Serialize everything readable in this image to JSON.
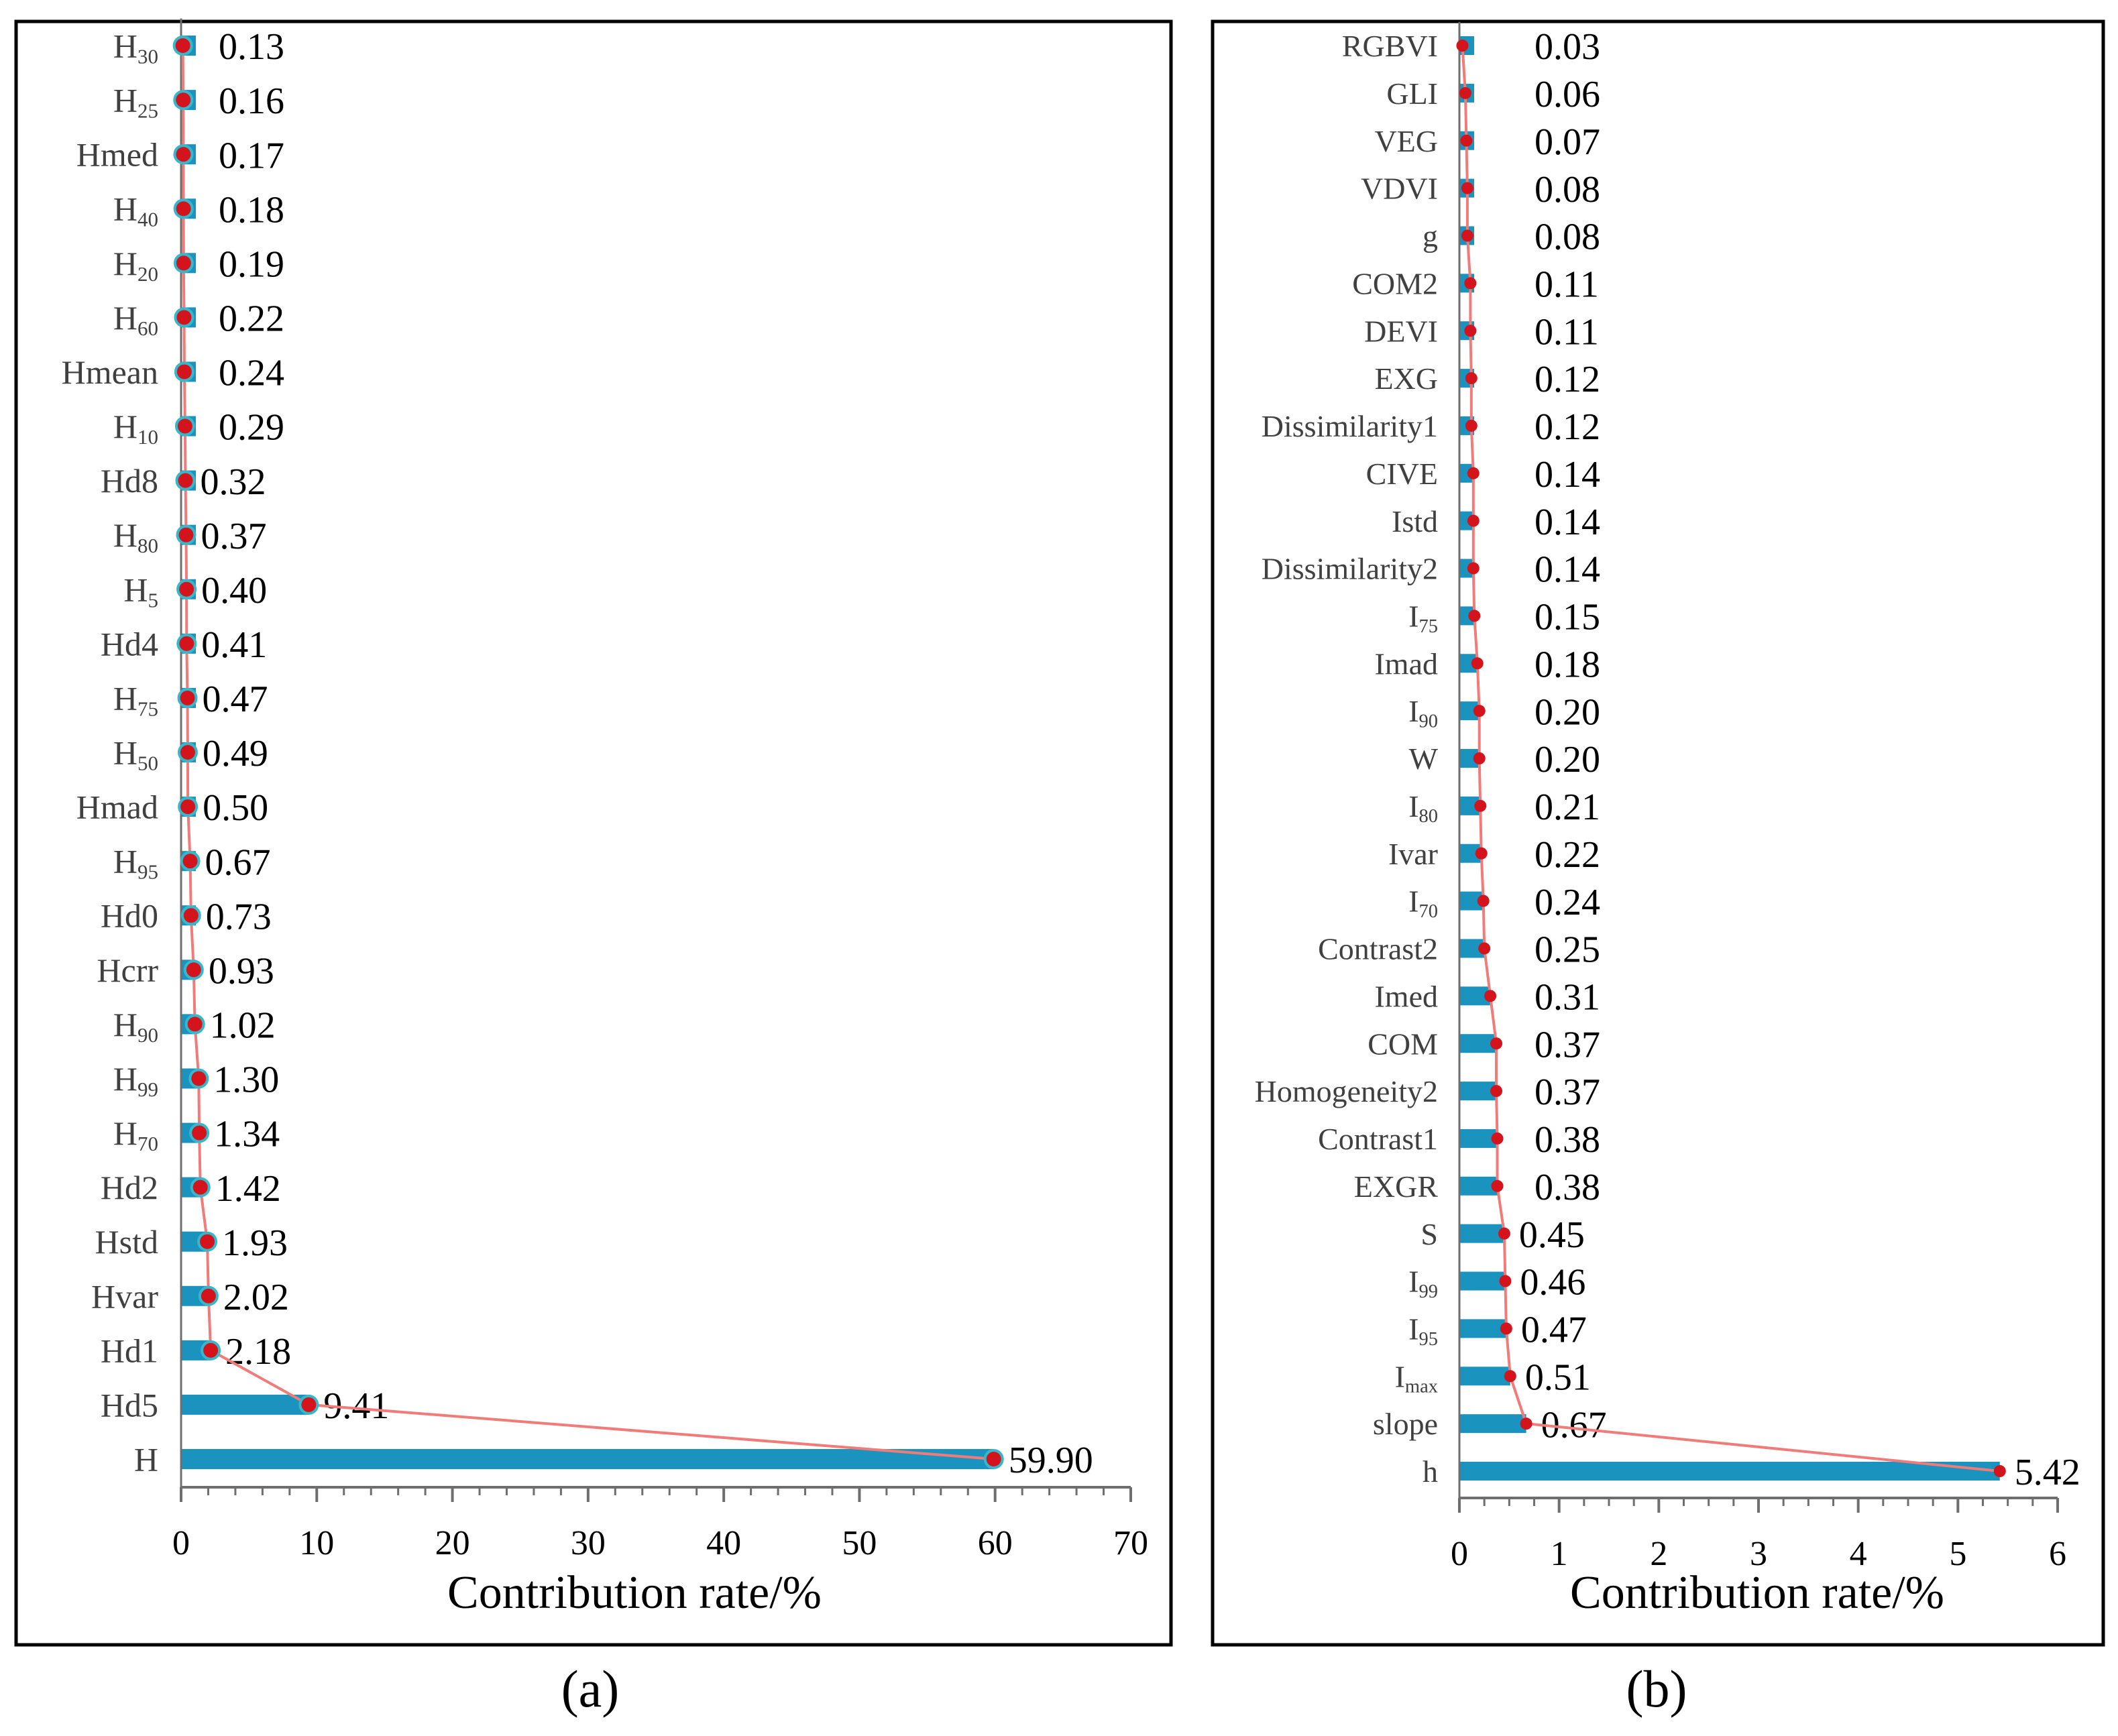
{
  "chart_data": [
    {
      "panel": "(a)",
      "type": "bar",
      "orientation": "horizontal",
      "xlabel": "Contribution rate/%",
      "xlim": [
        0,
        70
      ],
      "xticks": [
        0,
        10,
        20,
        30,
        40,
        50,
        60,
        70
      ],
      "categories": [
        {
          "name": "H",
          "sub": "30"
        },
        {
          "name": "H",
          "sub": "25"
        },
        {
          "name": "Hmed",
          "sub": ""
        },
        {
          "name": "H",
          "sub": "40"
        },
        {
          "name": "H",
          "sub": "20"
        },
        {
          "name": "H",
          "sub": "60"
        },
        {
          "name": "Hmean",
          "sub": ""
        },
        {
          "name": "H",
          "sub": "10"
        },
        {
          "name": "Hd8",
          "sub": ""
        },
        {
          "name": "H",
          "sub": "80"
        },
        {
          "name": "H",
          "sub": "5"
        },
        {
          "name": "Hd4",
          "sub": ""
        },
        {
          "name": "H",
          "sub": "75"
        },
        {
          "name": "H",
          "sub": "50"
        },
        {
          "name": "Hmad",
          "sub": ""
        },
        {
          "name": "H",
          "sub": "95"
        },
        {
          "name": "Hd0",
          "sub": ""
        },
        {
          "name": "Hcrr",
          "sub": ""
        },
        {
          "name": "H",
          "sub": "90"
        },
        {
          "name": "H",
          "sub": "99"
        },
        {
          "name": "H",
          "sub": "70"
        },
        {
          "name": "Hd2",
          "sub": ""
        },
        {
          "name": "Hstd",
          "sub": ""
        },
        {
          "name": "Hvar",
          "sub": ""
        },
        {
          "name": "Hd1",
          "sub": ""
        },
        {
          "name": "Hd5",
          "sub": ""
        },
        {
          "name": "H",
          "sub": ""
        }
      ],
      "values": [
        0.13,
        0.16,
        0.17,
        0.18,
        0.19,
        0.22,
        0.24,
        0.29,
        0.32,
        0.37,
        0.4,
        0.41,
        0.47,
        0.49,
        0.5,
        0.67,
        0.73,
        0.93,
        1.02,
        1.3,
        1.34,
        1.42,
        1.93,
        2.02,
        2.18,
        9.41,
        59.9
      ],
      "value_labels": [
        "0.13",
        "0.16",
        "0.17",
        "0.18",
        "0.19",
        "0.22",
        "0.24",
        "0.29",
        "0.32",
        "0.37",
        "0.40",
        "0.41",
        "0.47",
        "0.49",
        "0.50",
        "0.67",
        "0.73",
        "0.93",
        "1.02",
        "1.30",
        "1.34",
        "1.42",
        "1.93",
        "2.02",
        "2.18",
        "9.41",
        "59.90"
      ],
      "marker_style": "cyan-outline"
    },
    {
      "panel": "(b)",
      "type": "bar",
      "orientation": "horizontal",
      "xlabel": "Contribution rate/%",
      "xlim": [
        0,
        6
      ],
      "xticks": [
        0,
        1,
        2,
        3,
        4,
        5,
        6
      ],
      "categories": [
        {
          "name": "RGBVI",
          "sub": ""
        },
        {
          "name": "GLI",
          "sub": ""
        },
        {
          "name": "VEG",
          "sub": ""
        },
        {
          "name": "VDVI",
          "sub": ""
        },
        {
          "name": "g",
          "sub": ""
        },
        {
          "name": "COM2",
          "sub": ""
        },
        {
          "name": "DEVI",
          "sub": ""
        },
        {
          "name": "EXG",
          "sub": ""
        },
        {
          "name": "Dissimilarity1",
          "sub": ""
        },
        {
          "name": "CIVE",
          "sub": ""
        },
        {
          "name": "Istd",
          "sub": ""
        },
        {
          "name": "Dissimilarity2",
          "sub": ""
        },
        {
          "name": "I",
          "sub": "75"
        },
        {
          "name": "Imad",
          "sub": ""
        },
        {
          "name": "I",
          "sub": "90"
        },
        {
          "name": "W",
          "sub": ""
        },
        {
          "name": "I",
          "sub": "80"
        },
        {
          "name": "Ivar",
          "sub": ""
        },
        {
          "name": "I",
          "sub": "70"
        },
        {
          "name": "Contrast2",
          "sub": ""
        },
        {
          "name": "Imed",
          "sub": ""
        },
        {
          "name": "COM",
          "sub": ""
        },
        {
          "name": "Homogeneity2",
          "sub": ""
        },
        {
          "name": "Contrast1",
          "sub": ""
        },
        {
          "name": "EXGR",
          "sub": ""
        },
        {
          "name": "S",
          "sub": ""
        },
        {
          "name": "I",
          "sub": "99"
        },
        {
          "name": "I",
          "sub": "95"
        },
        {
          "name": "I",
          "sub": "max"
        },
        {
          "name": "slope",
          "sub": ""
        },
        {
          "name": "h",
          "sub": ""
        }
      ],
      "values": [
        0.03,
        0.06,
        0.07,
        0.08,
        0.08,
        0.11,
        0.11,
        0.12,
        0.12,
        0.14,
        0.14,
        0.14,
        0.15,
        0.18,
        0.2,
        0.2,
        0.21,
        0.22,
        0.24,
        0.25,
        0.31,
        0.37,
        0.37,
        0.38,
        0.38,
        0.45,
        0.46,
        0.47,
        0.51,
        0.67,
        5.42
      ],
      "value_labels": [
        "0.03",
        "0.06",
        "0.07",
        "0.08",
        "0.08",
        "0.11",
        "0.11",
        "0.12",
        "0.12",
        "0.14",
        "0.14",
        "0.14",
        "0.15",
        "0.18",
        "0.20",
        "0.20",
        "0.21",
        "0.22",
        "0.24",
        "0.25",
        "0.31",
        "0.37",
        "0.37",
        "0.38",
        "0.38",
        "0.45",
        "0.46",
        "0.47",
        "0.51",
        "0.67",
        "5.42"
      ],
      "marker_style": "plain"
    }
  ],
  "colors": {
    "bar": "#1a93bf",
    "line": "#f07b78",
    "marker": "#d4141c",
    "marker_outline": "#36b8cc",
    "axis": "#6e6e6e",
    "frame": "#000000",
    "text": "#000000",
    "label_text": "#404040"
  }
}
